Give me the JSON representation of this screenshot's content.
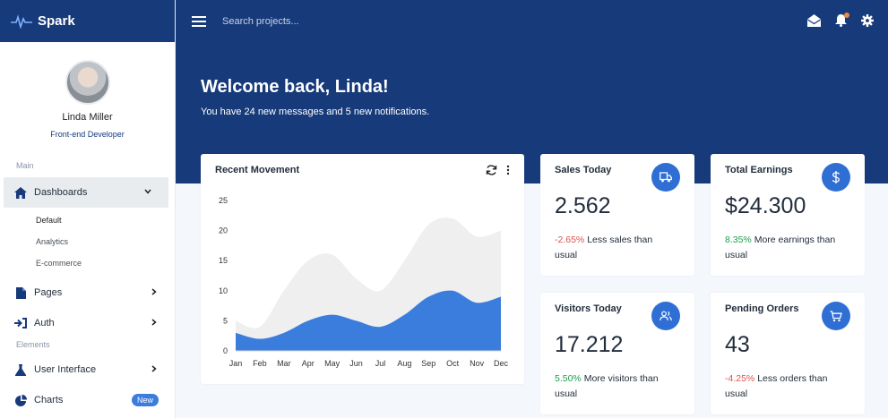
{
  "brand": {
    "name": "Spark"
  },
  "topbar": {
    "search_placeholder": "Search projects..."
  },
  "profile": {
    "name": "Linda Miller",
    "role": "Front-end Developer"
  },
  "sidebar": {
    "section_main": "Main",
    "section_elements": "Elements",
    "dashboards": "Dashboards",
    "sub_items": [
      "Default",
      "Analytics",
      "E-commerce"
    ],
    "pages": "Pages",
    "auth": "Auth",
    "user_interface": "User Interface",
    "charts": "Charts",
    "charts_badge": "New"
  },
  "welcome": {
    "title": "Welcome back, Linda!",
    "subtitle": "You have 24 new messages and 5 new notifications."
  },
  "stats": [
    {
      "title": "Sales Today",
      "value": "2.562",
      "change": "-2.65%",
      "note": " Less sales than usual",
      "icon": "truck-icon",
      "trend": "negative"
    },
    {
      "title": "Total Earnings",
      "value": "$24.300",
      "change": "8.35%",
      "note": " More earnings than usual",
      "icon": "dollar-icon",
      "trend": "positive"
    },
    {
      "title": "Visitors Today",
      "value": "17.212",
      "change": "5.50%",
      "note": " More visitors than usual",
      "icon": "users-icon",
      "trend": "positive"
    },
    {
      "title": "Pending Orders",
      "value": "43",
      "change": "-4.25%",
      "note": " Less orders than usual",
      "icon": "cart-icon",
      "trend": "negative"
    }
  ],
  "colors": {
    "primary": "#173a7a",
    "accent": "#3b7ddd",
    "area_back": "#efefef",
    "negative": "#d9534f",
    "positive": "#1e9e4e"
  },
  "chart_data": {
    "type": "area",
    "title": "Recent Movement",
    "categories": [
      "Jan",
      "Feb",
      "Mar",
      "Apr",
      "May",
      "Jun",
      "Jul",
      "Aug",
      "Sep",
      "Oct",
      "Nov",
      "Dec"
    ],
    "series": [
      {
        "values": [
          5,
          4,
          10,
          15,
          16,
          12,
          10,
          15,
          21,
          22,
          19,
          20
        ]
      },
      {
        "values": [
          3,
          2,
          3,
          5,
          6,
          5,
          4,
          6,
          9,
          10,
          8,
          9
        ]
      }
    ],
    "ylim": [
      0,
      25
    ],
    "yticks": [
      0,
      5,
      10,
      15,
      20,
      25
    ],
    "grid": false,
    "legend": "none"
  }
}
